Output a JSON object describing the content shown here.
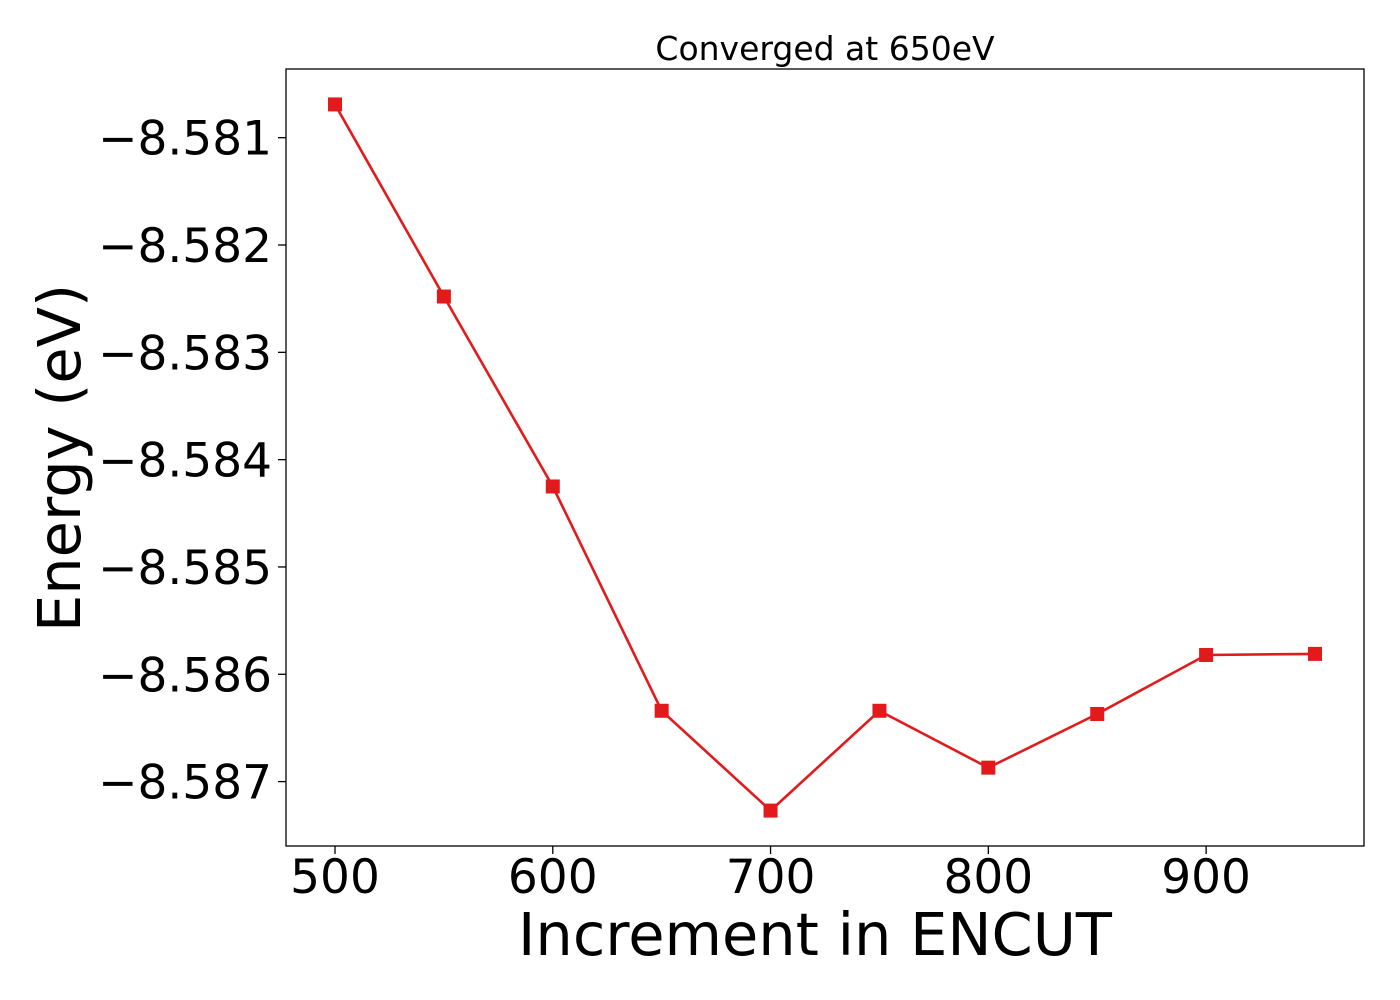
{
  "chart_data": {
    "type": "line",
    "title": "Converged at 650eV",
    "xlabel": "Increment in ENCUT",
    "ylabel": "Energy (eV)",
    "x": [
      500,
      550,
      600,
      650,
      700,
      750,
      800,
      850,
      900,
      950
    ],
    "series": [
      {
        "values": [
          -8.58069,
          -8.58248,
          -8.58425,
          -8.58634,
          -8.58727,
          -8.58634,
          -8.58687,
          -8.58637,
          -8.58582,
          -8.58581
        ],
        "color": "#e31a1c",
        "marker": "square"
      }
    ],
    "xticks": [
      500,
      600,
      700,
      800,
      900
    ],
    "xtick_labels": [
      "500",
      "600",
      "700",
      "800",
      "900"
    ],
    "yticks": [
      -8.581,
      -8.582,
      -8.583,
      -8.584,
      -8.585,
      -8.586,
      -8.587
    ],
    "ytick_labels": [
      "−8.581",
      "−8.582",
      "−8.583",
      "−8.584",
      "−8.585",
      "−8.586",
      "−8.587"
    ],
    "xlim": [
      477.5,
      972.5
    ],
    "ylim": [
      -8.5876,
      -8.58036
    ],
    "grid": false,
    "legend": false
  }
}
